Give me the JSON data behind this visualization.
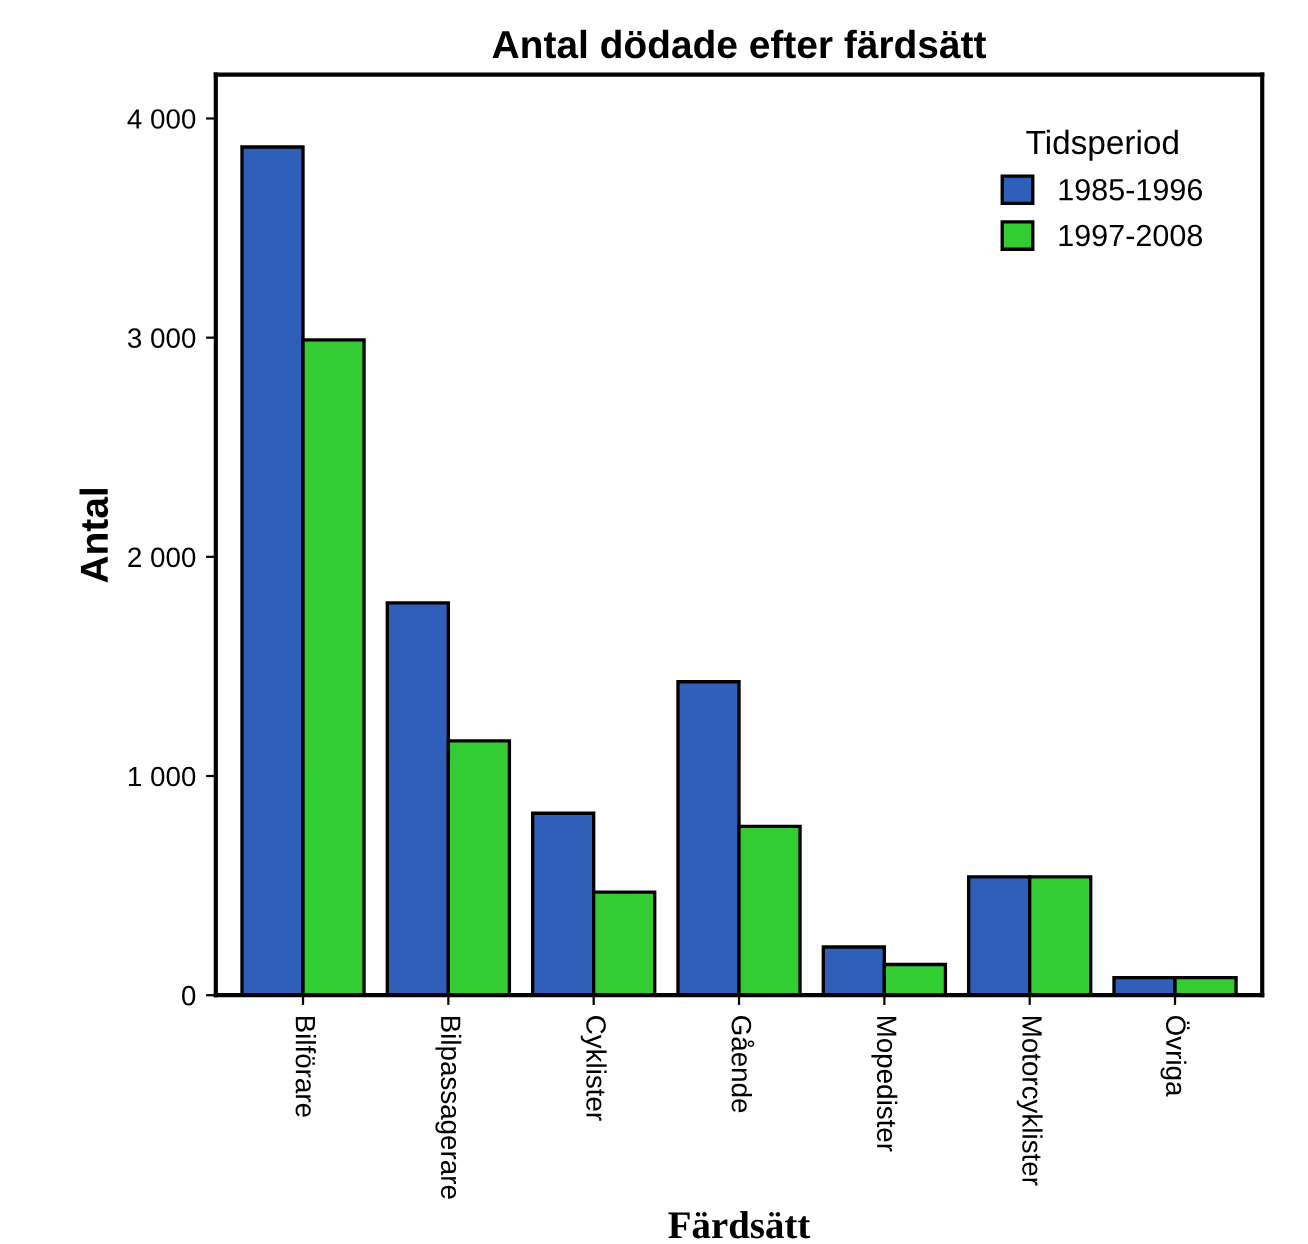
{
  "chart_data": {
    "type": "bar",
    "title": "Antal dödade efter färdsätt",
    "xlabel": "Färdsätt",
    "ylabel": "Antal",
    "legend_title": "Tidsperiod",
    "categories": [
      "Bilförare",
      "Bilpassagerare",
      "Cyklister",
      "Gående",
      "Mopedister",
      "Motorcyklister",
      "Övriga"
    ],
    "series": [
      {
        "name": "1985-1996",
        "color": "#2f5fb8",
        "values": [
          3870,
          1790,
          830,
          1430,
          220,
          540,
          80
        ]
      },
      {
        "name": "1997-2008",
        "color": "#33cc33",
        "values": [
          2990,
          1160,
          470,
          770,
          140,
          540,
          80
        ]
      }
    ],
    "ylim": [
      0,
      4200
    ],
    "yticks": [
      0,
      {
        "value": 1000,
        "label": "1 000"
      },
      {
        "value": 2000,
        "label": "2 000"
      },
      {
        "value": 3000,
        "label": "3 000"
      },
      {
        "value": 4000,
        "label": "4 000"
      }
    ],
    "legend": "top right",
    "grid": false
  }
}
